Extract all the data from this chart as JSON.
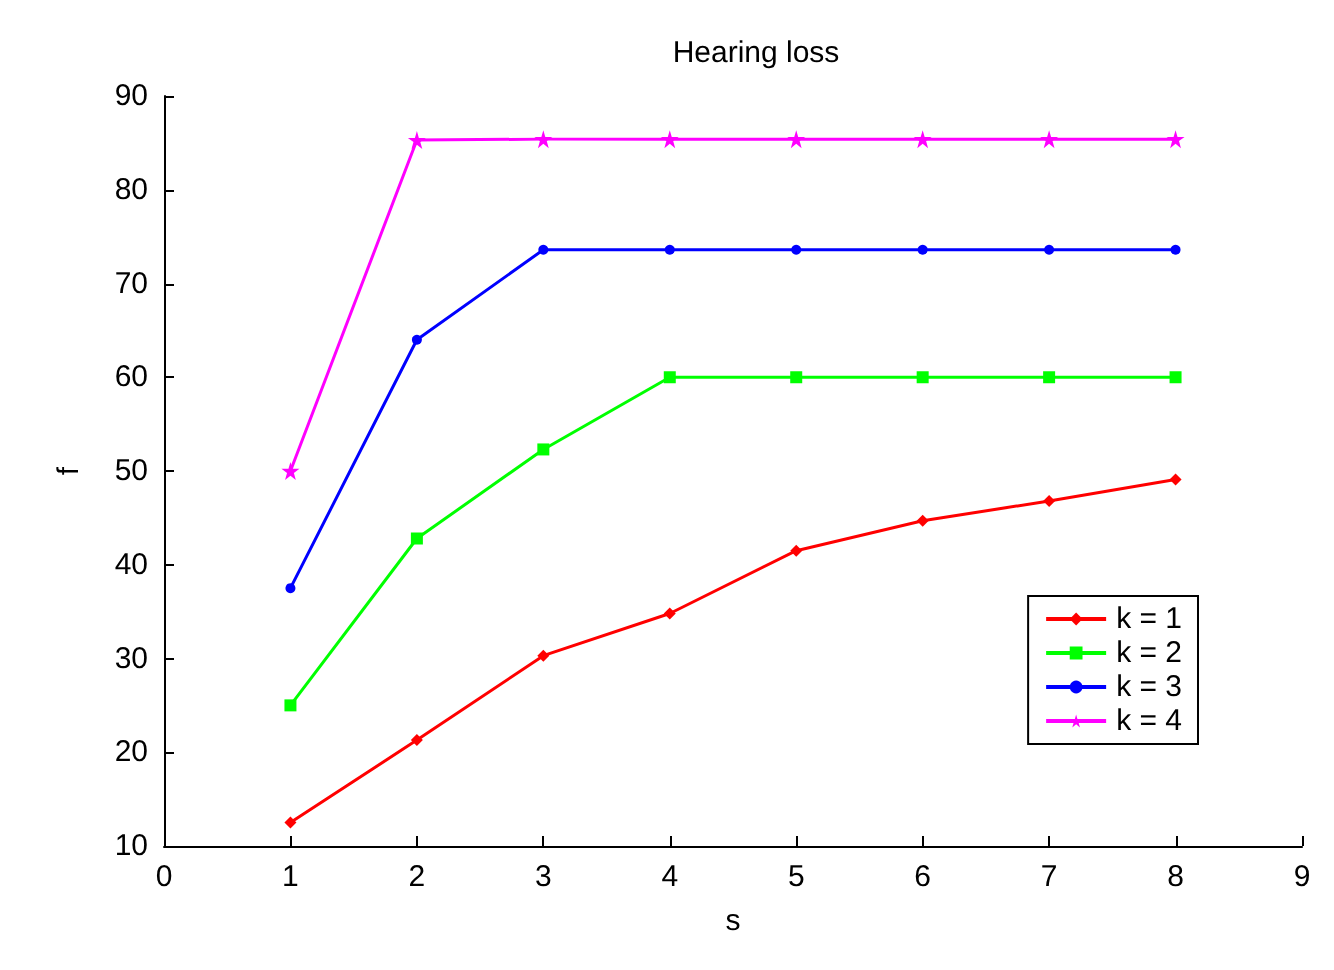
{
  "chart_data": {
    "type": "line",
    "title": "Hearing loss",
    "xlabel": "s",
    "ylabel": "f",
    "x": [
      1,
      2,
      3,
      4,
      5,
      6,
      7,
      8
    ],
    "series": [
      {
        "name": "k = 1",
        "color": "#ff0000",
        "marker": "diamond",
        "values": [
          12.5,
          21.3,
          30.3,
          34.8,
          41.5,
          44.7,
          46.8,
          49.1
        ]
      },
      {
        "name": "k = 2",
        "color": "#00ff00",
        "marker": "square",
        "values": [
          25,
          42.8,
          52.3,
          60,
          60,
          60,
          60,
          60
        ]
      },
      {
        "name": "k = 3",
        "color": "#0000ff",
        "marker": "circle",
        "values": [
          37.5,
          64,
          73.6,
          73.6,
          73.6,
          73.6,
          73.6,
          73.6
        ]
      },
      {
        "name": "k = 4",
        "color": "#ff00ff",
        "marker": "star",
        "values": [
          50,
          85.3,
          85.4,
          85.4,
          85.4,
          85.4,
          85.4,
          85.4
        ]
      }
    ],
    "xlim": [
      0,
      9
    ],
    "xticks": [
      0,
      1,
      2,
      3,
      4,
      5,
      6,
      7,
      8,
      9
    ],
    "ylim": [
      10,
      90
    ],
    "yticks": [
      10,
      20,
      30,
      40,
      50,
      60,
      70,
      80,
      90
    ],
    "grid": false,
    "legend": "right",
    "line_style": "solid"
  }
}
